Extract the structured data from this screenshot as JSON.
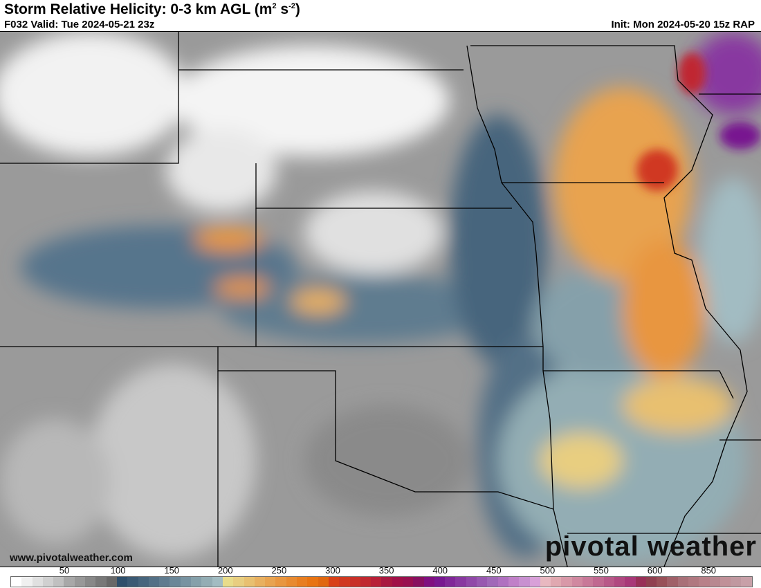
{
  "header": {
    "title": "Storm Relative Helicity: 0-3 km AGL (m",
    "title_unit_sup1": "2",
    "title_unit_mid": " s",
    "title_unit_sup2": "-2",
    "title_close": ")",
    "valid": "F032 Valid: Tue 2024-05-21 23z",
    "init": "Init: Mon 2024-05-20 15z RAP"
  },
  "footer": {
    "url": "www.pivotalweather.com",
    "logo": "pivotal weather"
  },
  "colorbar": {
    "labels": [
      "50",
      "100",
      "150",
      "200",
      "250",
      "300",
      "350",
      "400",
      "450",
      "500",
      "550",
      "600",
      "850"
    ],
    "colors": [
      "#ffffff",
      "#f0f0f0",
      "#e0e0e0",
      "#d0d0d0",
      "#c0c0c0",
      "#a8a8a8",
      "#989898",
      "#888888",
      "#787878",
      "#686868",
      "#2f4f6b",
      "#3b5a74",
      "#47657d",
      "#537086",
      "#5f7b8f",
      "#6b8798",
      "#7893a1",
      "#85a0aa",
      "#93adb4",
      "#a2bcc2",
      "#e8dc8a",
      "#e8ce80",
      "#e8c070",
      "#e8b060",
      "#e8a350",
      "#e89640",
      "#e88a30",
      "#e87e20",
      "#e87412",
      "#e06810",
      "#d84018",
      "#d03820",
      "#c83028",
      "#c02830",
      "#b82038",
      "#a81840",
      "#a01048",
      "#981050",
      "#881060",
      "#801080",
      "#781890",
      "#802898",
      "#8838a0",
      "#9048a8",
      "#9858b0",
      "#a068b8",
      "#b070c0",
      "#c080c8",
      "#c890d0",
      "#d8a0d8",
      "#e8b8c0",
      "#e0a8b0",
      "#d898a8",
      "#d088a0",
      "#c87898",
      "#c06890",
      "#b85888",
      "#b04880",
      "#a83878",
      "#983058",
      "#904050",
      "#985058",
      "#a06068",
      "#a87078",
      "#b07880",
      "#b88088",
      "#b88890",
      "#c09098",
      "#c098a0",
      "#c8a0a8"
    ]
  }
}
